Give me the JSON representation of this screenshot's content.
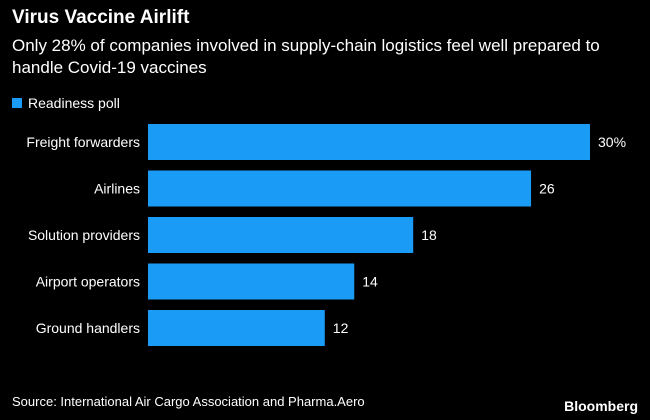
{
  "title": "Virus Vaccine Airlift",
  "subtitle": "Only 28% of companies involved in supply-chain logistics feel well prepared to handle Covid-19 vaccines",
  "source": "Source: International Air Cargo Association and Pharma.Aero",
  "brand": "Bloomberg",
  "colors": {
    "background": "#000000",
    "bar": "#1a9bf5",
    "text": "#ffffff"
  },
  "chart_data": {
    "type": "bar",
    "orientation": "horizontal",
    "categories": [
      "Freight forwarders",
      "Airlines",
      "Solution providers",
      "Airport operators",
      "Ground handlers"
    ],
    "series": [
      {
        "name": "Readiness poll",
        "values": [
          30,
          26,
          18,
          14,
          12
        ]
      }
    ],
    "data_labels": [
      "30%",
      "26",
      "18",
      "14",
      "12"
    ],
    "xlim": [
      0,
      30
    ],
    "grid": false,
    "legend_position": "top-left"
  }
}
